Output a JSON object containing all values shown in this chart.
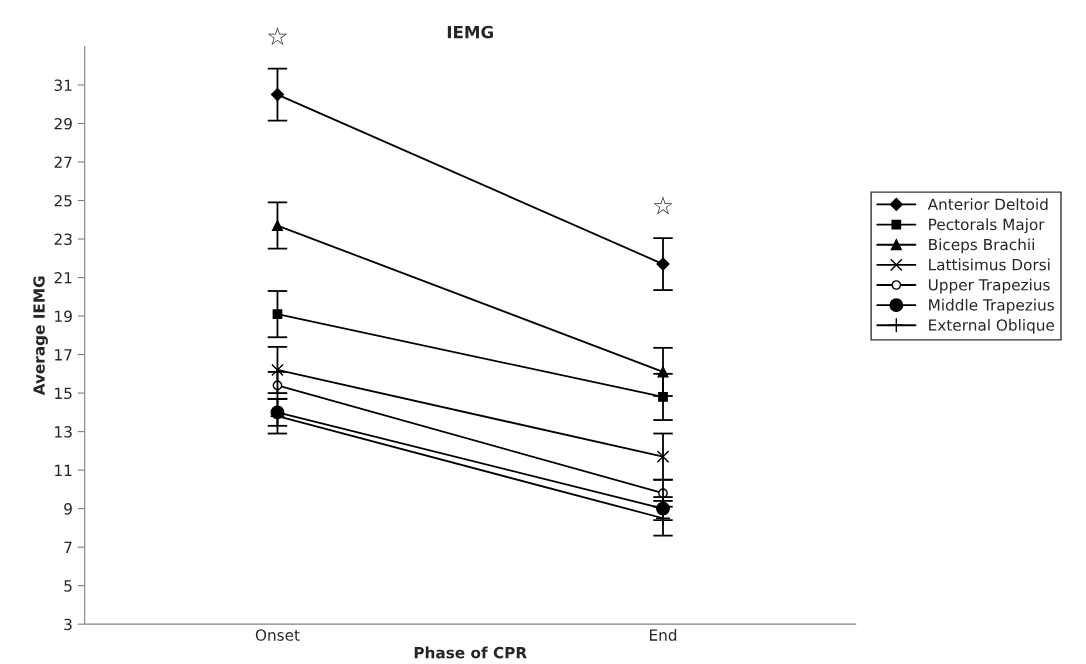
{
  "chart_data": {
    "type": "line",
    "title": "IEMG",
    "xlabel": "Phase of CPR",
    "ylabel": "Average IEMG",
    "categories": [
      "Onset",
      "End"
    ],
    "ylim": [
      3,
      33
    ],
    "yticks": [
      3,
      5,
      7,
      9,
      11,
      13,
      15,
      17,
      19,
      21,
      23,
      25,
      27,
      29,
      31
    ],
    "grid": false,
    "legend": "right",
    "series": [
      {
        "name": "Anterior Deltoid",
        "color": "#000000",
        "marker": "diamond",
        "values": [
          30.5,
          21.7
        ],
        "errors": [
          1.35,
          1.35
        ]
      },
      {
        "name": "Pectorals Major",
        "color": "#000000",
        "marker": "square",
        "values": [
          19.1,
          14.8
        ],
        "errors": [
          1.2,
          1.2
        ]
      },
      {
        "name": "Biceps Brachii",
        "color": "#000000",
        "marker": "triangle",
        "values": [
          23.7,
          16.1
        ],
        "errors": [
          1.2,
          1.25
        ]
      },
      {
        "name": "Lattisimus Dorsi",
        "color": "#000000",
        "marker": "x",
        "values": [
          16.2,
          11.7
        ],
        "errors": [
          1.2,
          1.2
        ]
      },
      {
        "name": "Upper Trapezius",
        "color": "#000000",
        "marker": "open circle",
        "values": [
          15.4,
          9.8
        ],
        "errors": [
          0.7,
          0.7
        ]
      },
      {
        "name": "Middle Trapezius",
        "color": "#000000",
        "marker": "circle",
        "values": [
          14.0,
          9.0
        ],
        "errors": [
          0.7,
          0.6
        ]
      },
      {
        "name": "External Oblique",
        "color": "#000000",
        "marker": "plus",
        "values": [
          13.8,
          8.5
        ],
        "errors": [
          0.9,
          0.9
        ]
      }
    ],
    "annotations": [
      "☆",
      "☆"
    ]
  }
}
